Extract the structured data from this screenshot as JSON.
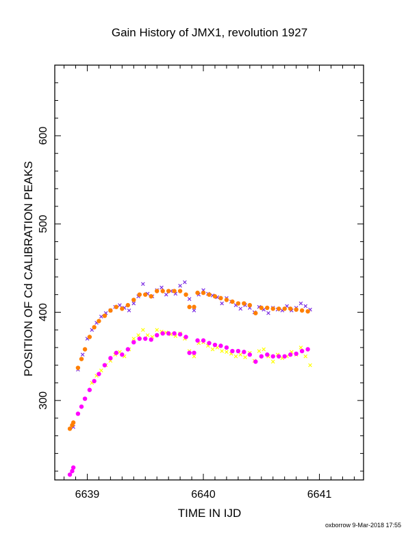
{
  "chart_data": {
    "type": "scatter",
    "title": "Gain History of JMX1, revolution 1927",
    "xlabel": "TIME IN IJD",
    "ylabel": "POSITION OF Cd CALIBRATION PEAKS",
    "xlim": [
      6638.72,
      6641.38
    ],
    "ylim": [
      210,
      680
    ],
    "xticks": [
      6639,
      6640,
      6641
    ],
    "yticks": [
      300,
      400,
      500,
      600
    ],
    "grid": false,
    "series": [
      {
        "marker": "x",
        "color": "#7a2be2",
        "points": [
          [
            6638.88,
            270
          ],
          [
            6638.92,
            335
          ],
          [
            6638.96,
            352
          ],
          [
            6639.0,
            370
          ],
          [
            6639.04,
            380
          ],
          [
            6639.08,
            388
          ],
          [
            6639.12,
            395
          ],
          [
            6639.16,
            399
          ],
          [
            6639.2,
            402
          ],
          [
            6639.24,
            406
          ],
          [
            6639.28,
            408
          ],
          [
            6639.32,
            405
          ],
          [
            6639.36,
            402
          ],
          [
            6639.4,
            410
          ],
          [
            6639.44,
            418
          ],
          [
            6639.48,
            432
          ],
          [
            6639.52,
            421
          ],
          [
            6639.56,
            418
          ],
          [
            6639.6,
            425
          ],
          [
            6639.64,
            428
          ],
          [
            6639.68,
            420
          ],
          [
            6639.72,
            424
          ],
          [
            6639.76,
            421
          ],
          [
            6639.8,
            430
          ],
          [
            6639.84,
            434
          ],
          [
            6639.88,
            415
          ],
          [
            6639.92,
            402
          ],
          [
            6639.96,
            420
          ],
          [
            6640.0,
            425
          ],
          [
            6640.04,
            421
          ],
          [
            6640.08,
            419
          ],
          [
            6640.12,
            417
          ],
          [
            6640.16,
            410
          ],
          [
            6640.2,
            416
          ],
          [
            6640.24,
            412
          ],
          [
            6640.28,
            408
          ],
          [
            6640.32,
            404
          ],
          [
            6640.36,
            408
          ],
          [
            6640.4,
            405
          ],
          [
            6640.44,
            400
          ],
          [
            6640.48,
            406
          ],
          [
            6640.52,
            403
          ],
          [
            6640.56,
            399
          ],
          [
            6640.6,
            405
          ],
          [
            6640.64,
            403
          ],
          [
            6640.68,
            402
          ],
          [
            6640.72,
            407
          ],
          [
            6640.76,
            402
          ],
          [
            6640.8,
            405
          ],
          [
            6640.84,
            410
          ],
          [
            6640.88,
            407
          ],
          [
            6640.92,
            403
          ]
        ]
      },
      {
        "marker": "x",
        "color": "#ffff00",
        "points": [
          [
            6639.04,
            320
          ],
          [
            6639.08,
            328
          ],
          [
            6639.12,
            334
          ],
          [
            6639.16,
            340
          ],
          [
            6639.2,
            345
          ],
          [
            6639.24,
            352
          ],
          [
            6639.28,
            355
          ],
          [
            6639.32,
            350
          ],
          [
            6639.36,
            358
          ],
          [
            6639.4,
            370
          ],
          [
            6639.44,
            374
          ],
          [
            6639.48,
            380
          ],
          [
            6639.52,
            374
          ],
          [
            6639.56,
            372
          ],
          [
            6639.6,
            380
          ],
          [
            6639.64,
            378
          ],
          [
            6639.68,
            377
          ],
          [
            6639.72,
            375
          ],
          [
            6639.76,
            373
          ],
          [
            6639.8,
            376
          ],
          [
            6639.84,
            370
          ],
          [
            6639.88,
            356
          ],
          [
            6639.92,
            350
          ],
          [
            6639.96,
            365
          ],
          [
            6640.0,
            366
          ],
          [
            6640.04,
            362
          ],
          [
            6640.08,
            358
          ],
          [
            6640.12,
            360
          ],
          [
            6640.16,
            356
          ],
          [
            6640.2,
            355
          ],
          [
            6640.24,
            353
          ],
          [
            6640.28,
            350
          ],
          [
            6640.32,
            352
          ],
          [
            6640.36,
            349
          ],
          [
            6640.4,
            354
          ],
          [
            6640.44,
            345
          ],
          [
            6640.48,
            356
          ],
          [
            6640.52,
            358
          ],
          [
            6640.56,
            350
          ],
          [
            6640.6,
            344
          ],
          [
            6640.64,
            352
          ],
          [
            6640.68,
            348
          ],
          [
            6640.72,
            350
          ],
          [
            6640.76,
            355
          ],
          [
            6640.8,
            352
          ],
          [
            6640.84,
            360
          ],
          [
            6640.88,
            350
          ],
          [
            6640.92,
            340
          ]
        ]
      },
      {
        "marker": "dot",
        "color": "#ff7f00",
        "points": [
          [
            6638.85,
            268
          ],
          [
            6638.87,
            272
          ],
          [
            6638.88,
            275
          ],
          [
            6638.92,
            337
          ],
          [
            6638.95,
            347
          ],
          [
            6638.98,
            358
          ],
          [
            6639.02,
            372
          ],
          [
            6639.06,
            383
          ],
          [
            6639.1,
            390
          ],
          [
            6639.15,
            396
          ],
          [
            6639.2,
            402
          ],
          [
            6639.25,
            406
          ],
          [
            6639.3,
            404
          ],
          [
            6639.35,
            408
          ],
          [
            6639.4,
            414
          ],
          [
            6639.45,
            420
          ],
          [
            6639.5,
            420
          ],
          [
            6639.55,
            418
          ],
          [
            6639.6,
            424
          ],
          [
            6639.65,
            424
          ],
          [
            6639.7,
            424
          ],
          [
            6639.75,
            424
          ],
          [
            6639.8,
            424
          ],
          [
            6639.85,
            420
          ],
          [
            6639.88,
            406
          ],
          [
            6639.92,
            406
          ],
          [
            6639.95,
            422
          ],
          [
            6640.0,
            422
          ],
          [
            6640.05,
            420
          ],
          [
            6640.1,
            418
          ],
          [
            6640.15,
            416
          ],
          [
            6640.2,
            414
          ],
          [
            6640.25,
            412
          ],
          [
            6640.3,
            410
          ],
          [
            6640.35,
            410
          ],
          [
            6640.4,
            408
          ],
          [
            6640.45,
            399
          ],
          [
            6640.5,
            405
          ],
          [
            6640.55,
            405
          ],
          [
            6640.6,
            404
          ],
          [
            6640.65,
            404
          ],
          [
            6640.7,
            404
          ],
          [
            6640.75,
            404
          ],
          [
            6640.8,
            403
          ],
          [
            6640.85,
            402
          ],
          [
            6640.9,
            401
          ]
        ]
      },
      {
        "marker": "dot",
        "color": "#ff00ff",
        "points": [
          [
            6638.85,
            216
          ],
          [
            6638.87,
            220
          ],
          [
            6638.88,
            224
          ],
          [
            6638.92,
            285
          ],
          [
            6638.95,
            293
          ],
          [
            6638.98,
            302
          ],
          [
            6639.02,
            312
          ],
          [
            6639.06,
            322
          ],
          [
            6639.1,
            330
          ],
          [
            6639.15,
            340
          ],
          [
            6639.2,
            348
          ],
          [
            6639.25,
            354
          ],
          [
            6639.3,
            352
          ],
          [
            6639.35,
            358
          ],
          [
            6639.4,
            366
          ],
          [
            6639.45,
            370
          ],
          [
            6639.5,
            370
          ],
          [
            6639.55,
            369
          ],
          [
            6639.6,
            374
          ],
          [
            6639.65,
            376
          ],
          [
            6639.7,
            376
          ],
          [
            6639.75,
            376
          ],
          [
            6639.8,
            375
          ],
          [
            6639.85,
            372
          ],
          [
            6639.88,
            354
          ],
          [
            6639.92,
            354
          ],
          [
            6639.95,
            368
          ],
          [
            6640.0,
            368
          ],
          [
            6640.05,
            365
          ],
          [
            6640.1,
            363
          ],
          [
            6640.15,
            362
          ],
          [
            6640.2,
            360
          ],
          [
            6640.25,
            356
          ],
          [
            6640.3,
            356
          ],
          [
            6640.35,
            355
          ],
          [
            6640.4,
            352
          ],
          [
            6640.45,
            344
          ],
          [
            6640.5,
            350
          ],
          [
            6640.55,
            352
          ],
          [
            6640.6,
            350
          ],
          [
            6640.65,
            350
          ],
          [
            6640.7,
            350
          ],
          [
            6640.75,
            352
          ],
          [
            6640.8,
            353
          ],
          [
            6640.85,
            356
          ],
          [
            6640.9,
            358
          ]
        ]
      }
    ]
  },
  "footer": "oxborrow  9-Mar-2018 17:55"
}
